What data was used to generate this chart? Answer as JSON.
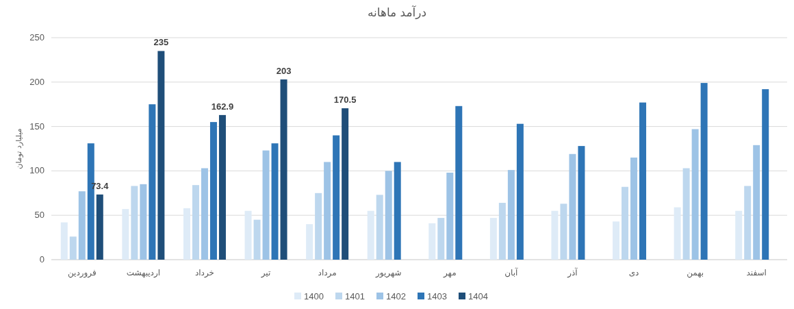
{
  "chart_data": {
    "type": "bar",
    "title": "درآمد ماهانه",
    "ylabel": "میلیارد تومان",
    "categories": [
      "فروردین",
      "اردیبهشت",
      "خرداد",
      "تیر",
      "مرداد",
      "شهریور",
      "مهر",
      "آبان",
      "آذر",
      "دی",
      "بهمن",
      "اسفند"
    ],
    "series": [
      {
        "name": "1400",
        "color": "#deebf7",
        "values": [
          42,
          57,
          58,
          55,
          40,
          55,
          41,
          47,
          55,
          43,
          59,
          55
        ]
      },
      {
        "name": "1401",
        "color": "#bdd7ee",
        "values": [
          26,
          83,
          84,
          45,
          75,
          73,
          47,
          64,
          63,
          82,
          103,
          83
        ]
      },
      {
        "name": "1402",
        "color": "#9dc3e6",
        "values": [
          77,
          85,
          103,
          123,
          110,
          100,
          98,
          101,
          119,
          115,
          147,
          129
        ]
      },
      {
        "name": "1403",
        "color": "#2e75b6",
        "values": [
          131,
          175,
          155,
          131,
          140,
          110,
          173,
          153,
          128,
          177,
          199,
          192
        ]
      },
      {
        "name": "1404",
        "color": "#1f4e79",
        "values": [
          73.4,
          235,
          162.9,
          203,
          170.5,
          null,
          null,
          null,
          null,
          null,
          null,
          null
        ],
        "value_labels": [
          "73.4",
          "235",
          "162.9",
          "203",
          "170.5",
          null,
          null,
          null,
          null,
          null,
          null,
          null
        ]
      }
    ],
    "ylim": [
      0,
      250
    ],
    "yticks": [
      0,
      50,
      100,
      150,
      200,
      250
    ],
    "grid": "y",
    "legend": "bottom"
  }
}
